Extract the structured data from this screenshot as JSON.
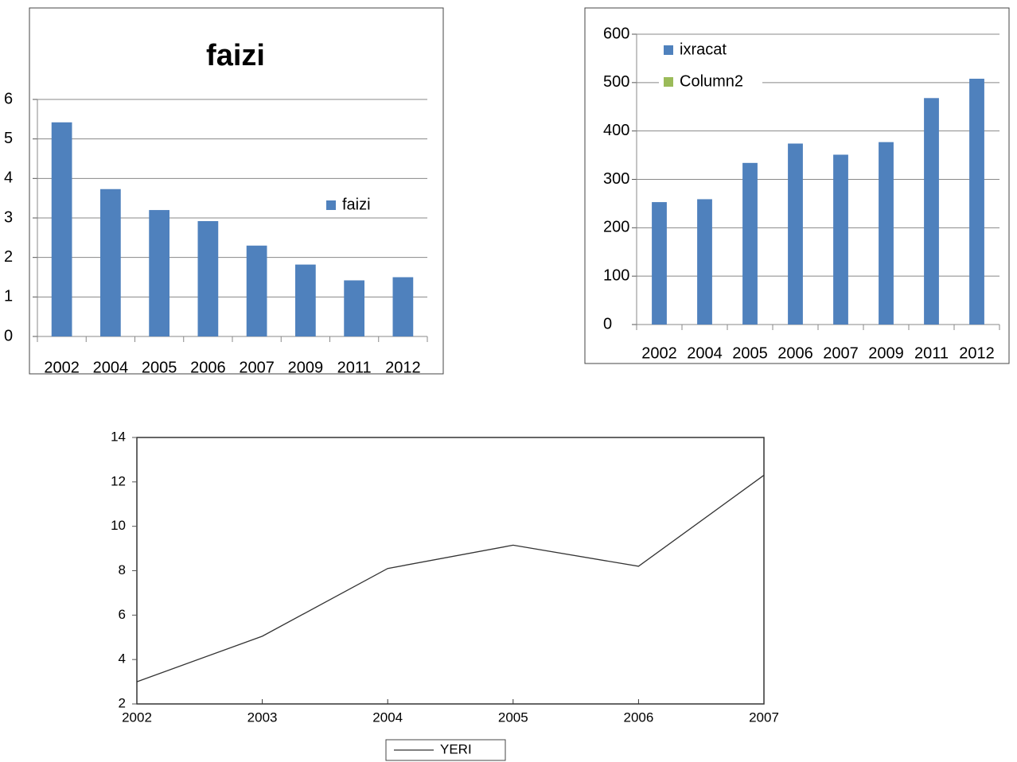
{
  "chart_data": [
    {
      "type": "bar",
      "title": "faizi",
      "categories": [
        "2002",
        "2004",
        "2005",
        "2006",
        "2007",
        "2009",
        "2011",
        "2012"
      ],
      "series": [
        {
          "name": "faizi",
          "color": "#4f81bd",
          "values": [
            5.42,
            3.73,
            3.2,
            2.92,
            2.3,
            1.82,
            1.42,
            1.5
          ]
        }
      ],
      "ylim": [
        0,
        6
      ],
      "yticks": [
        0,
        1,
        2,
        3,
        4,
        5,
        6
      ],
      "grid": true,
      "legend": "right"
    },
    {
      "type": "bar",
      "categories": [
        "2002",
        "2004",
        "2005",
        "2006",
        "2007",
        "2009",
        "2011",
        "2012"
      ],
      "series": [
        {
          "name": "ixracat",
          "color": "#4f81bd",
          "values": [
            253,
            259,
            334,
            374,
            351,
            377,
            468,
            508
          ]
        },
        {
          "name": "Column2",
          "color": "#9bbb59",
          "values": [
            null,
            null,
            null,
            null,
            null,
            null,
            null,
            null
          ]
        }
      ],
      "ylim": [
        0,
        600
      ],
      "yticks": [
        0,
        100,
        200,
        300,
        400,
        500,
        600
      ],
      "grid": true,
      "legend": "top-left"
    },
    {
      "type": "line",
      "x": [
        2002,
        2003,
        2004,
        2005,
        2006,
        2007
      ],
      "series": [
        {
          "name": "YERI",
          "color": "#333333",
          "values": [
            3.0,
            5.05,
            8.1,
            9.15,
            8.2,
            12.3
          ]
        }
      ],
      "xlim": [
        2002,
        2007
      ],
      "xticks": [
        2002,
        2003,
        2004,
        2005,
        2006,
        2007
      ],
      "ylim": [
        2,
        14
      ],
      "yticks": [
        2,
        4,
        6,
        8,
        10,
        12,
        14
      ],
      "grid": false,
      "legend": "bottom"
    }
  ]
}
